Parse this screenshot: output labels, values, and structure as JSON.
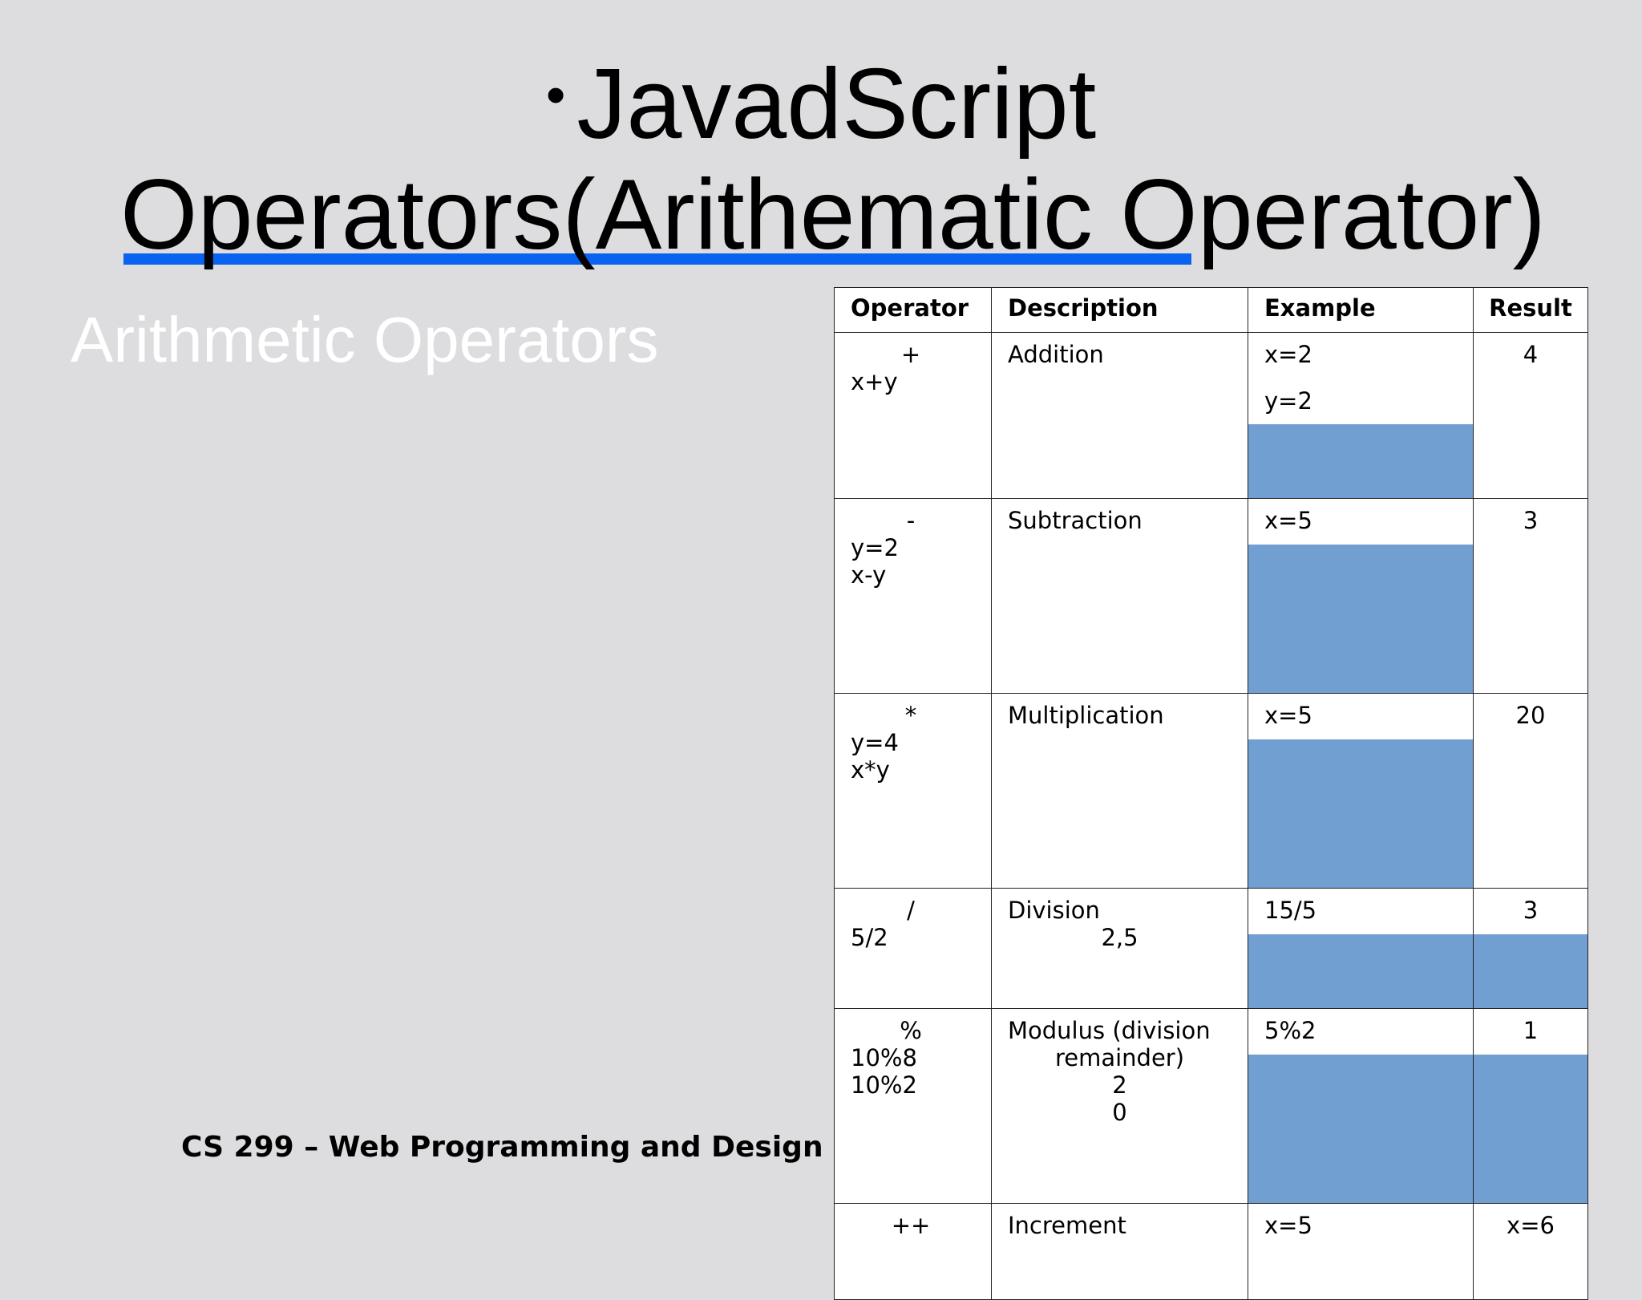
{
  "title": {
    "bullet": "•",
    "line1": "JavadScript",
    "line2": "Operators(Arithematic Operator)"
  },
  "subtitle": "Arithmetic Operators",
  "footer": "CS 299 – Web Programming and Design",
  "colors": {
    "background": "#dddddf",
    "underline": "#0a63f0",
    "cell_fill": "#729fd2"
  },
  "table": {
    "headers": [
      "Operator",
      "Description",
      "Example",
      "Result"
    ],
    "rows": [
      {
        "symbol": "+",
        "op_lines": [
          "x+y"
        ],
        "desc": "Addition",
        "desc_extra": [],
        "example": [
          "x=2",
          "y=2"
        ],
        "result": "4"
      },
      {
        "symbol": "-",
        "op_lines": [
          "y=2",
          "x-y"
        ],
        "desc": "Subtraction",
        "desc_extra": [],
        "example": [
          "x=5"
        ],
        "result": "3"
      },
      {
        "symbol": "*",
        "op_lines": [
          "y=4",
          "x*y"
        ],
        "desc": "Multiplication",
        "desc_extra": [],
        "example": [
          "x=5"
        ],
        "result": "20"
      },
      {
        "symbol": "/",
        "op_lines": [
          "5/2"
        ],
        "desc": "Division",
        "desc_extra": [
          "2,5"
        ],
        "example": [
          "15/5"
        ],
        "result": "3"
      },
      {
        "symbol": "%",
        "op_lines": [
          "10%8",
          "10%2"
        ],
        "desc": "Modulus (division",
        "desc_extra": [
          "remainder)",
          "2",
          "0"
        ],
        "example": [
          "5%2"
        ],
        "result": "1"
      },
      {
        "symbol": "++",
        "op_lines": [],
        "desc": "Increment",
        "desc_extra": [],
        "example": [
          "x=5"
        ],
        "result": "x=6"
      }
    ]
  }
}
